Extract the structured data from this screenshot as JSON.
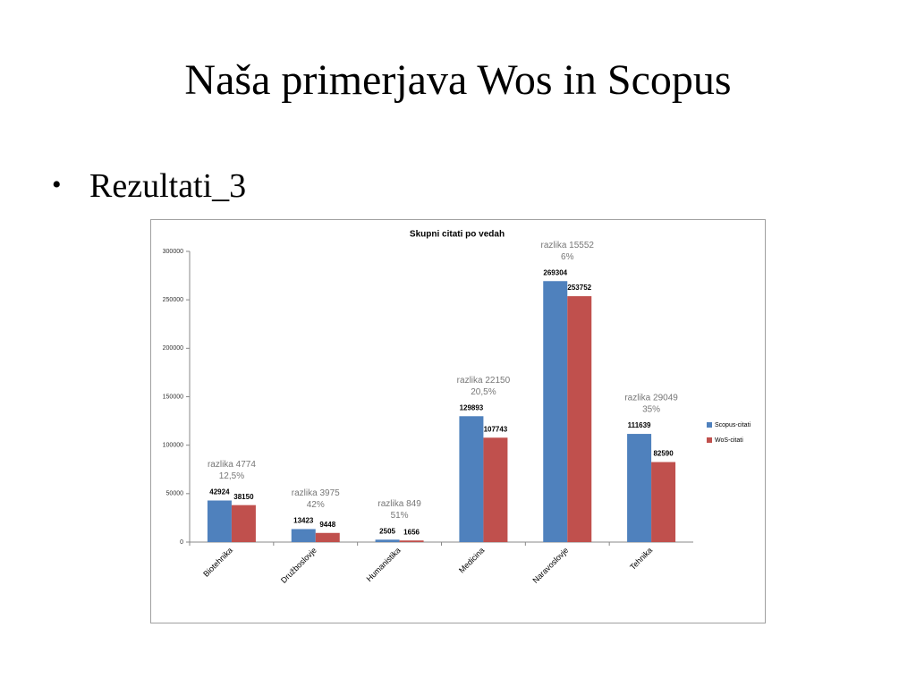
{
  "slide": {
    "title": "Naša primerjava Wos in Scopus",
    "bullets": [
      "Rezultati_3"
    ]
  },
  "chart_data": {
    "type": "bar",
    "title": "Skupni citati po vedah",
    "categories": [
      "Biotehnika",
      "Družboslovje",
      "Humanistika",
      "Medicina",
      "Naravoslovje",
      "Tehnika"
    ],
    "series": [
      {
        "name": "Scopus-citati",
        "color": "#4f81bd",
        "values": [
          42924,
          13423,
          2505,
          129893,
          269304,
          111639
        ]
      },
      {
        "name": "WoS-citati",
        "color": "#c0504d",
        "values": [
          38150,
          9448,
          1656,
          107743,
          253752,
          82590
        ]
      }
    ],
    "annotations": [
      [
        "razlika 4774",
        "12,5%"
      ],
      [
        "razlika 3975",
        "42%"
      ],
      [
        "razlika 849",
        "51%"
      ],
      [
        "razlika 22150",
        "20,5%"
      ],
      [
        "razlika 15552",
        "6%"
      ],
      [
        "razlika 29049",
        "35%"
      ]
    ],
    "ylim": [
      0,
      300000
    ],
    "yticks": [
      0,
      50000,
      100000,
      150000,
      200000,
      250000,
      300000
    ],
    "grid": false,
    "legend": "right"
  }
}
